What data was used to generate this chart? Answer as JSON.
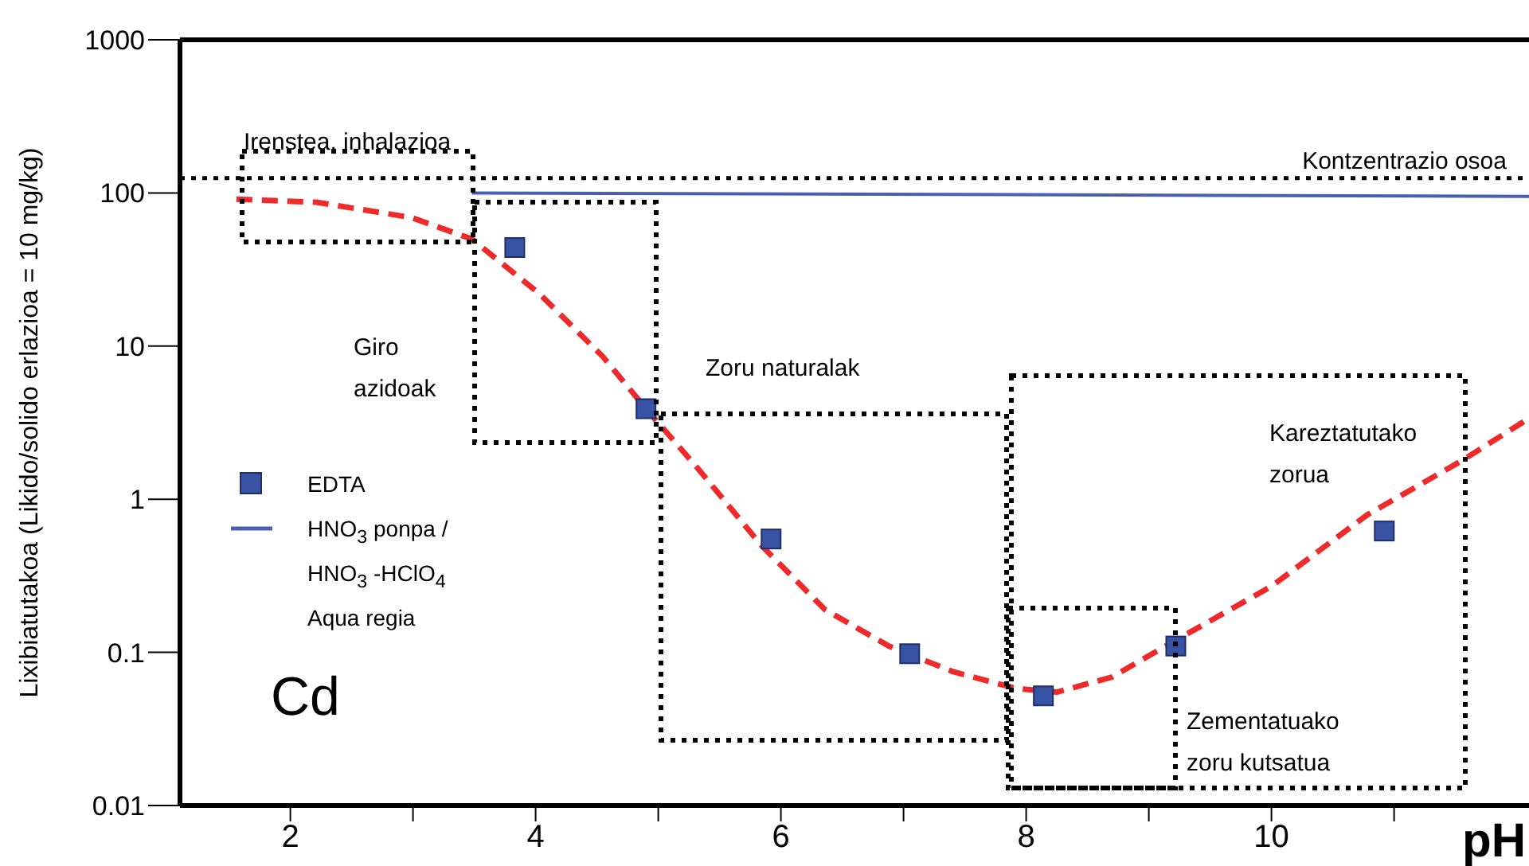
{
  "chart_data": {
    "type": "line",
    "xlabel": "pH",
    "ylabel": "Lixibiatutakoa (Likido/solido erlazioa = 10 mg/kg)",
    "log": "y",
    "xlim": [
      1.1,
      12.1
    ],
    "ylim": [
      0.01,
      1000
    ],
    "xticks": [
      2,
      {
        "value": 3,
        "label": null
      },
      4,
      {
        "value": 5,
        "label": null
      },
      6,
      {
        "value": 7,
        "label": null
      },
      8,
      {
        "value": 9,
        "label": null
      },
      10,
      {
        "value": 11,
        "label": null
      }
    ],
    "yticks": [
      0.01,
      0.1,
      1,
      10,
      100,
      1000
    ],
    "legend": "left",
    "series": [
      {
        "name": "EDTA",
        "type": "scatter",
        "marker": "square",
        "color": "#3953a4",
        "x": [
          3.83,
          4.9,
          5.92,
          7.05,
          8.14,
          9.22,
          10.92
        ],
        "values": [
          44,
          3.9,
          0.55,
          0.098,
          0.052,
          0.11,
          0.62
        ]
      },
      {
        "name": "HNO$_{3}$ ponpa / HNO$_{3}$ -HClO$_{4}$ Aqua regia",
        "marker": "none",
        "line_style": "solid",
        "color": "#4a5fb0",
        "x": [
          3.48,
          12.1
        ],
        "values": [
          100,
          95
        ]
      },
      {
        "marker": "none",
        "line_style": "dashed",
        "color": "#ee2a2a",
        "x": [
          1.56,
          2.21,
          2.99,
          3.48,
          4.03,
          4.55,
          4.9,
          5.32,
          5.84,
          6.36,
          6.88,
          7.4,
          7.92,
          8.25,
          8.7,
          9.22,
          10.0,
          10.78,
          11.56,
          12.08
        ],
        "values": [
          91,
          87,
          69,
          50,
          22,
          8.5,
          3.9,
          1.6,
          0.5,
          0.19,
          0.11,
          0.075,
          0.058,
          0.055,
          0.069,
          0.12,
          0.27,
          0.79,
          1.8,
          3.3
        ]
      }
    ],
    "ref_lines": [
      {
        "axis": "y",
        "value": 125,
        "label": "Kontzentrazio osoa",
        "color": "#000000",
        "line_style": "dotted"
      }
    ],
    "annotations": [
      "Cd",
      "Irenstea, inhalazioa",
      "Giro\nazidoak",
      "Zoru naturalak",
      "Kareztatutako\nzorua",
      "Zementatuako\nzoru kutsatua"
    ]
  }
}
